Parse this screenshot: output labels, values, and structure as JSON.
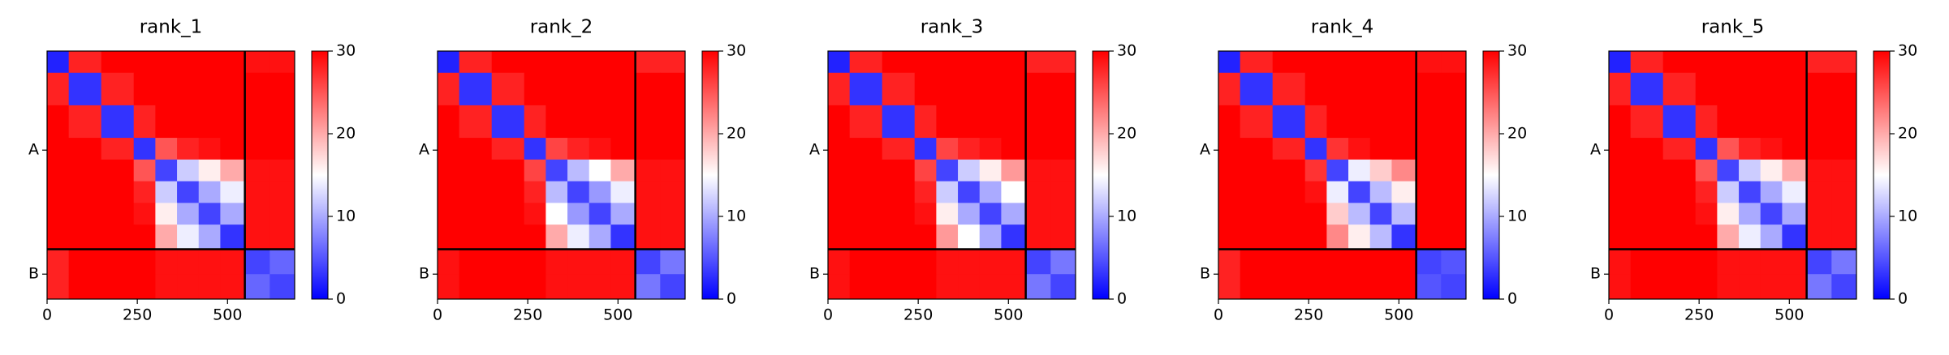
{
  "chart_data": [
    {
      "type": "heatmap",
      "title": "rank_1",
      "colormap": "bwr",
      "bins": [
        0,
        60,
        150,
        240,
        300,
        360,
        420,
        480,
        548,
        617,
        686
      ],
      "values": [
        [
          2,
          28,
          30,
          30,
          30,
          30,
          30,
          30,
          29,
          29
        ],
        [
          28,
          3,
          28,
          30,
          30,
          30,
          30,
          30,
          30,
          30
        ],
        [
          30,
          28,
          3,
          28,
          30,
          30,
          30,
          30,
          30,
          30
        ],
        [
          30,
          30,
          28,
          3,
          25,
          28,
          29,
          30,
          30,
          30
        ],
        [
          30,
          30,
          30,
          25,
          4,
          12,
          16,
          20,
          29,
          29
        ],
        [
          30,
          30,
          30,
          28,
          12,
          4,
          10,
          14,
          29,
          29
        ],
        [
          30,
          30,
          30,
          29,
          16,
          10,
          4,
          10,
          29,
          29
        ],
        [
          30,
          30,
          30,
          30,
          20,
          14,
          10,
          3,
          29,
          29
        ],
        [
          28,
          30,
          30,
          30,
          29,
          29,
          29,
          29,
          4,
          6
        ],
        [
          28,
          30,
          30,
          30,
          29,
          29,
          29,
          29,
          6,
          4
        ]
      ],
      "xlim": [
        0,
        686
      ],
      "ylim": [
        686,
        0
      ],
      "xticks": [
        0,
        250,
        500
      ],
      "yticks": [
        {
          "value": 274,
          "label": "A"
        },
        {
          "value": 617,
          "label": "B"
        }
      ],
      "chain_breaks": [
        548
      ],
      "clim": [
        0,
        30
      ],
      "cticks": [
        0,
        10,
        20,
        30
      ]
    },
    {
      "type": "heatmap",
      "title": "rank_2",
      "colormap": "bwr",
      "bins": [
        0,
        60,
        150,
        240,
        300,
        360,
        420,
        480,
        548,
        617,
        686
      ],
      "values": [
        [
          2,
          28,
          30,
          30,
          30,
          30,
          30,
          30,
          28,
          28
        ],
        [
          28,
          3,
          28,
          30,
          30,
          30,
          30,
          30,
          30,
          30
        ],
        [
          30,
          28,
          3,
          28,
          30,
          30,
          30,
          30,
          30,
          30
        ],
        [
          30,
          30,
          28,
          3,
          26,
          28,
          29,
          30,
          30,
          30
        ],
        [
          30,
          30,
          30,
          26,
          4,
          11,
          15,
          20,
          29,
          29
        ],
        [
          30,
          30,
          30,
          28,
          11,
          4,
          9,
          14,
          29,
          29
        ],
        [
          30,
          30,
          30,
          29,
          15,
          9,
          4,
          10,
          29,
          29
        ],
        [
          30,
          30,
          30,
          30,
          20,
          14,
          10,
          3,
          29,
          29
        ],
        [
          29,
          30,
          30,
          30,
          29,
          29,
          29,
          29,
          4,
          7
        ],
        [
          29,
          30,
          30,
          30,
          29,
          29,
          29,
          29,
          7,
          4
        ]
      ],
      "xlim": [
        0,
        686
      ],
      "ylim": [
        686,
        0
      ],
      "xticks": [
        0,
        250,
        500
      ],
      "yticks": [
        {
          "value": 274,
          "label": "A"
        },
        {
          "value": 617,
          "label": "B"
        }
      ],
      "chain_breaks": [
        548
      ],
      "clim": [
        0,
        30
      ],
      "cticks": [
        0,
        10,
        20,
        30
      ]
    },
    {
      "type": "heatmap",
      "title": "rank_3",
      "colormap": "bwr",
      "bins": [
        0,
        60,
        150,
        240,
        300,
        360,
        420,
        480,
        548,
        617,
        686
      ],
      "values": [
        [
          2,
          28,
          30,
          30,
          30,
          30,
          30,
          30,
          28,
          28
        ],
        [
          28,
          3,
          28,
          30,
          30,
          30,
          30,
          30,
          30,
          30
        ],
        [
          30,
          28,
          3,
          28,
          30,
          30,
          30,
          30,
          30,
          30
        ],
        [
          30,
          30,
          28,
          3,
          26,
          28,
          29,
          30,
          30,
          30
        ],
        [
          30,
          30,
          30,
          26,
          4,
          12,
          16,
          21,
          29,
          29
        ],
        [
          30,
          30,
          30,
          28,
          12,
          4,
          10,
          15,
          29,
          29
        ],
        [
          30,
          30,
          30,
          29,
          16,
          10,
          4,
          10,
          29,
          29
        ],
        [
          30,
          30,
          30,
          30,
          21,
          15,
          10,
          3,
          29,
          29
        ],
        [
          29,
          30,
          30,
          30,
          29,
          29,
          29,
          29,
          4,
          7
        ],
        [
          29,
          30,
          30,
          30,
          29,
          29,
          29,
          29,
          7,
          4
        ]
      ],
      "xlim": [
        0,
        686
      ],
      "ylim": [
        686,
        0
      ],
      "xticks": [
        0,
        250,
        500
      ],
      "yticks": [
        {
          "value": 274,
          "label": "A"
        },
        {
          "value": 617,
          "label": "B"
        }
      ],
      "chain_breaks": [
        548
      ],
      "clim": [
        0,
        30
      ],
      "cticks": [
        0,
        10,
        20,
        30
      ]
    },
    {
      "type": "heatmap",
      "title": "rank_4",
      "colormap": "bwr",
      "bins": [
        0,
        60,
        150,
        240,
        300,
        360,
        420,
        480,
        548,
        617,
        686
      ],
      "values": [
        [
          2,
          28,
          30,
          30,
          30,
          30,
          30,
          30,
          29,
          29
        ],
        [
          28,
          3,
          28,
          30,
          30,
          30,
          30,
          30,
          30,
          30
        ],
        [
          30,
          28,
          3,
          28,
          30,
          30,
          30,
          30,
          30,
          30
        ],
        [
          30,
          30,
          28,
          3,
          27,
          29,
          30,
          30,
          30,
          30
        ],
        [
          30,
          30,
          30,
          27,
          4,
          14,
          18,
          22,
          30,
          30
        ],
        [
          30,
          30,
          30,
          29,
          14,
          4,
          11,
          16,
          30,
          30
        ],
        [
          30,
          30,
          30,
          30,
          18,
          11,
          4,
          11,
          30,
          30
        ],
        [
          30,
          30,
          30,
          30,
          22,
          16,
          11,
          3,
          30,
          30
        ],
        [
          28,
          30,
          30,
          30,
          30,
          30,
          30,
          30,
          4,
          5
        ],
        [
          28,
          30,
          30,
          30,
          30,
          30,
          30,
          30,
          5,
          4
        ]
      ],
      "xlim": [
        0,
        686
      ],
      "ylim": [
        686,
        0
      ],
      "xticks": [
        0,
        250,
        500
      ],
      "yticks": [
        {
          "value": 274,
          "label": "A"
        },
        {
          "value": 617,
          "label": "B"
        }
      ],
      "chain_breaks": [
        548
      ],
      "clim": [
        0,
        30
      ],
      "cticks": [
        0,
        10,
        20,
        30
      ]
    },
    {
      "type": "heatmap",
      "title": "rank_5",
      "colormap": "bwr",
      "bins": [
        0,
        60,
        150,
        240,
        300,
        360,
        420,
        480,
        548,
        617,
        686
      ],
      "values": [
        [
          2,
          28,
          30,
          30,
          30,
          30,
          30,
          30,
          28,
          28
        ],
        [
          28,
          3,
          28,
          30,
          30,
          30,
          30,
          30,
          30,
          30
        ],
        [
          30,
          28,
          3,
          28,
          30,
          30,
          30,
          30,
          30,
          30
        ],
        [
          30,
          30,
          28,
          3,
          25,
          28,
          29,
          30,
          30,
          30
        ],
        [
          30,
          30,
          30,
          25,
          4,
          12,
          16,
          20,
          29,
          29
        ],
        [
          30,
          30,
          30,
          28,
          12,
          4,
          10,
          14,
          29,
          29
        ],
        [
          30,
          30,
          30,
          29,
          16,
          10,
          4,
          10,
          29,
          29
        ],
        [
          30,
          30,
          30,
          30,
          20,
          14,
          10,
          3,
          29,
          29
        ],
        [
          29,
          30,
          30,
          30,
          29,
          29,
          29,
          29,
          4,
          7
        ],
        [
          29,
          30,
          30,
          30,
          29,
          29,
          29,
          29,
          7,
          4
        ]
      ],
      "xlim": [
        0,
        686
      ],
      "ylim": [
        686,
        0
      ],
      "xticks": [
        0,
        250,
        500
      ],
      "yticks": [
        {
          "value": 274,
          "label": "A"
        },
        {
          "value": 617,
          "label": "B"
        }
      ],
      "chain_breaks": [
        548
      ],
      "clim": [
        0,
        30
      ],
      "cticks": [
        0,
        10,
        20,
        30
      ]
    }
  ]
}
